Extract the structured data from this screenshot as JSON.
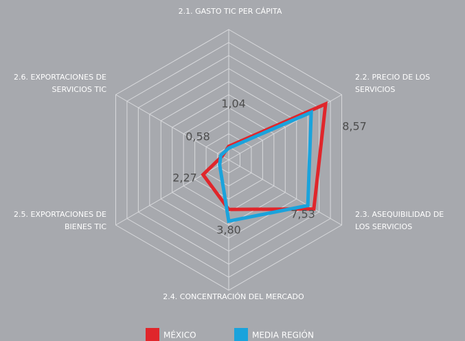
{
  "chart_data": {
    "type": "radar",
    "categories": [
      [
        "2.1. GASTO TIC PER CÁPITA"
      ],
      [
        "2.2. PRECIO DE LOS",
        "SERVICIOS"
      ],
      [
        "2.3. ASEQUIBILIDAD DE",
        "LOS SERVICIOS"
      ],
      [
        "2.4. CONCENTRACIÓN DEL MERCADO"
      ],
      [
        "2.5. EXPORTACIONES DE",
        "BIENES TIC"
      ],
      [
        "2.6. EXPORTACIONES DE",
        "SERVICIOS TIC"
      ]
    ],
    "series": [
      {
        "name": "MÉXICO",
        "color": "#e0262b",
        "values": [
          1.04,
          8.57,
          7.53,
          3.8,
          2.27,
          0.58
        ],
        "value_labels": [
          "1,04",
          "8,57",
          "7,53",
          "3,80",
          "2,27",
          "0,58"
        ]
      },
      {
        "name": "MEDIA REGIÓN",
        "color": "#1aa3dc",
        "values": [
          0.9,
          7.3,
          7.0,
          4.7,
          0.8,
          0.7
        ]
      }
    ],
    "ylim": [
      0,
      10
    ],
    "rticks": [
      1,
      2,
      3,
      4,
      5,
      6,
      7,
      8,
      9,
      10
    ],
    "grid": true
  }
}
